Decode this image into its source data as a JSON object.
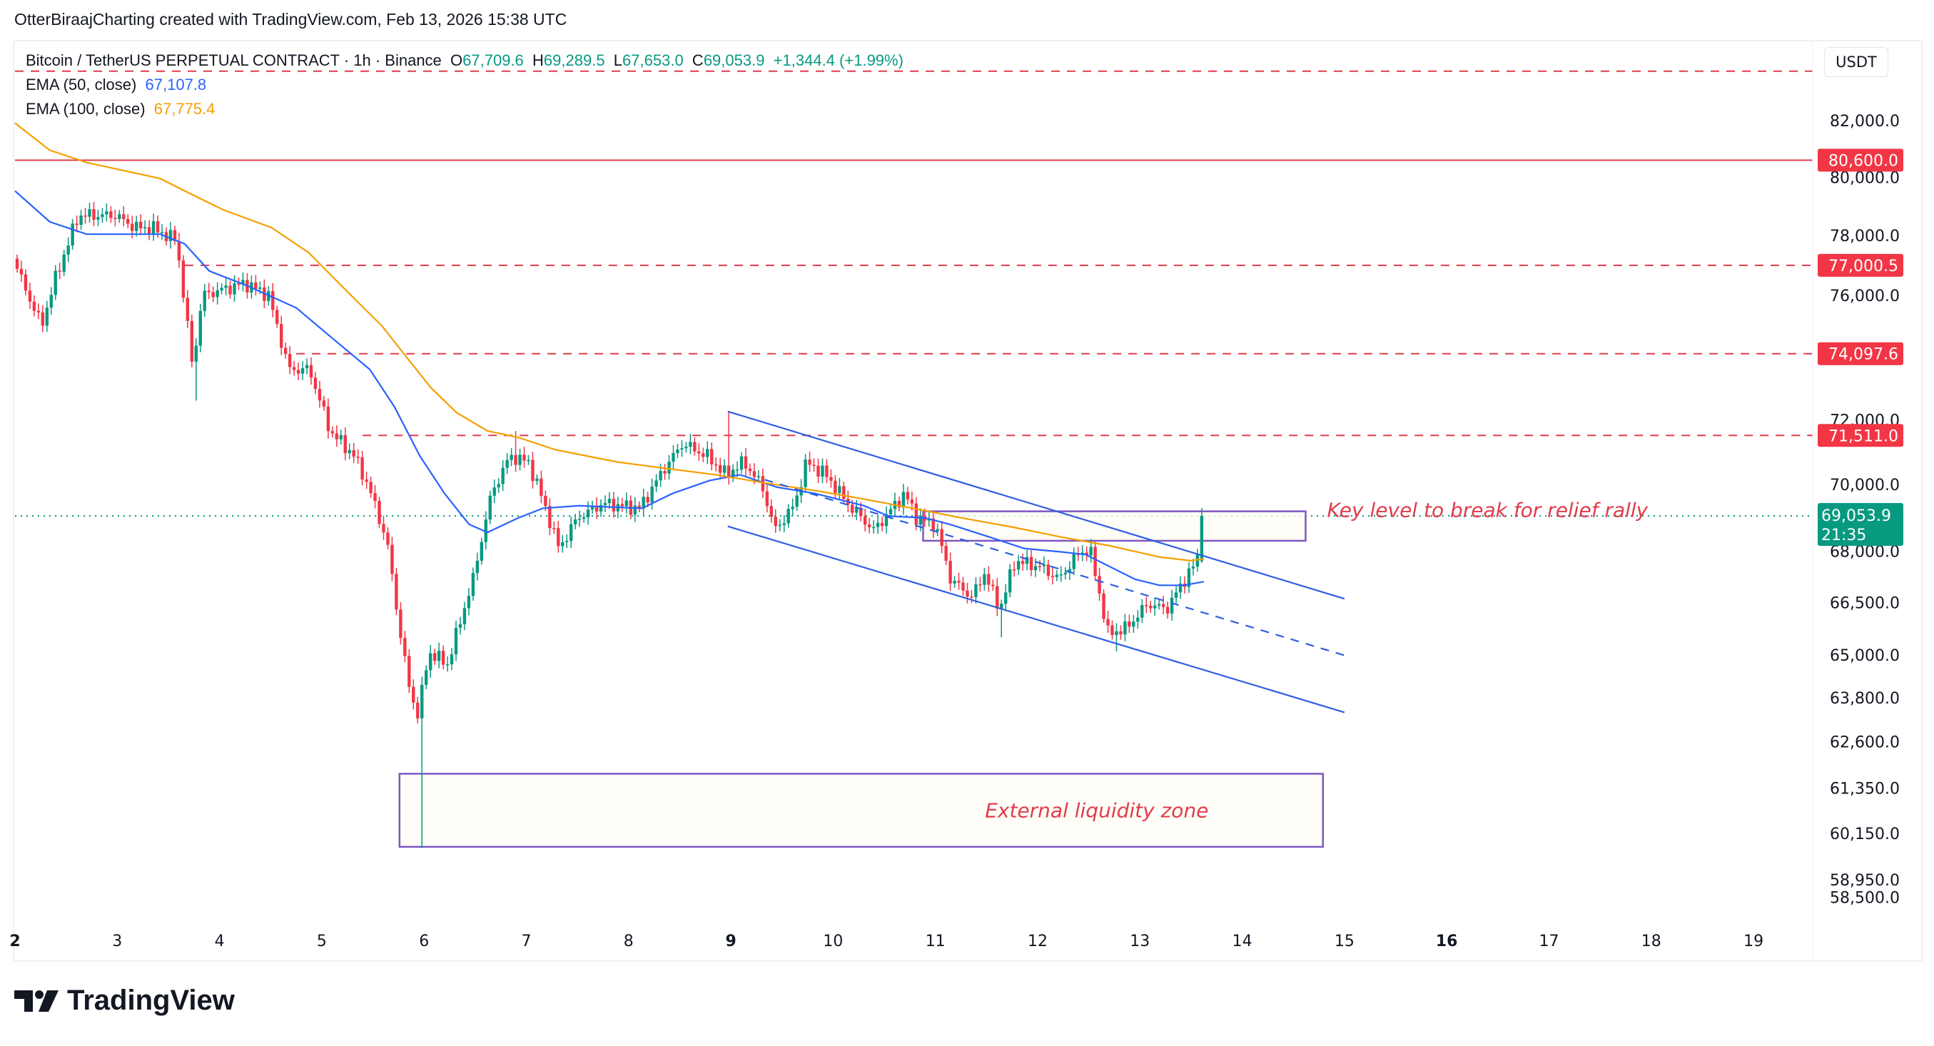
{
  "credit": "OtterBiraajCharting created with TradingView.com, Feb 13, 2026 15:38 UTC",
  "symbol": {
    "title": "Bitcoin / TetherUS PERPETUAL CONTRACT · 1h · Binance",
    "o_label": "O",
    "open": "67,709.6",
    "h_label": "H",
    "high": "69,289.5",
    "l_label": "L",
    "low": "67,653.0",
    "c_label": "C",
    "close": "69,053.9",
    "change": "+1,344.4 (+1.99%)"
  },
  "indicators": [
    {
      "label": "EMA (50, close)",
      "value": "67,107.8",
      "color": "#2962ff"
    },
    {
      "label": "EMA (100, close)",
      "value": "67,775.4",
      "color": "#f59f00"
    }
  ],
  "currency": "USDT",
  "logo_text": "TradingView",
  "colors": {
    "up": "#089981",
    "down": "#f23645",
    "level": "#e03c4b",
    "channel": "#2f5fe0",
    "box": "#7e57c2",
    "box_fill": "#fffdf5",
    "annotation": "#e03c4b"
  },
  "chart_data": {
    "type": "candlestick",
    "interval": "1h",
    "yscale": "log",
    "ylim": [
      58500,
      83800
    ],
    "xlim_days": [
      2,
      19.4
    ],
    "grid": false,
    "y_ticks": [
      "82,000.0",
      "80,000.0",
      "78,000.0",
      "76,000.0",
      "72,000.0",
      "70,000.0",
      "68,000.0",
      "66,500.0",
      "65,000.0",
      "63,800.0",
      "62,600.0",
      "61,350.0",
      "60,150.0",
      "58,950.0",
      "58,500.0"
    ],
    "x_ticks": [
      {
        "day": 2,
        "label": "2",
        "bold": true
      },
      {
        "day": 3,
        "label": "3"
      },
      {
        "day": 4,
        "label": "4"
      },
      {
        "day": 5,
        "label": "5"
      },
      {
        "day": 6,
        "label": "6"
      },
      {
        "day": 7,
        "label": "7"
      },
      {
        "day": 8,
        "label": "8"
      },
      {
        "day": 9,
        "label": "9",
        "bold": true
      },
      {
        "day": 10,
        "label": "10"
      },
      {
        "day": 11,
        "label": "11"
      },
      {
        "day": 12,
        "label": "12"
      },
      {
        "day": 13,
        "label": "13"
      },
      {
        "day": 14,
        "label": "14"
      },
      {
        "day": 15,
        "label": "15"
      },
      {
        "day": 16,
        "label": "16",
        "bold": true
      },
      {
        "day": 17,
        "label": "17"
      },
      {
        "day": 18,
        "label": "18"
      },
      {
        "day": 19,
        "label": "19"
      }
    ],
    "price_path": [
      [
        2.0,
        77220
      ],
      [
        2.15,
        76000
      ],
      [
        2.28,
        74990
      ],
      [
        2.4,
        76400
      ],
      [
        2.64,
        78690
      ],
      [
        3.0,
        78690
      ],
      [
        3.2,
        78270
      ],
      [
        3.36,
        78270
      ],
      [
        3.6,
        77840
      ],
      [
        3.76,
        73590
      ],
      [
        3.85,
        76000
      ],
      [
        4.27,
        76400
      ],
      [
        4.5,
        76000
      ],
      [
        4.7,
        73590
      ],
      [
        4.9,
        73590
      ],
      [
        5.1,
        71650
      ],
      [
        5.34,
        70870
      ],
      [
        5.48,
        69920
      ],
      [
        5.66,
        68260
      ],
      [
        5.78,
        65770
      ],
      [
        5.88,
        64020
      ],
      [
        5.96,
        63340
      ],
      [
        6.07,
        65080
      ],
      [
        6.25,
        64740
      ],
      [
        6.5,
        67180
      ],
      [
        6.68,
        69730
      ],
      [
        6.86,
        70870
      ],
      [
        7.04,
        70690
      ],
      [
        7.16,
        69730
      ],
      [
        7.34,
        68080
      ],
      [
        7.52,
        68990
      ],
      [
        7.77,
        69430
      ],
      [
        8.13,
        69280
      ],
      [
        8.37,
        70490
      ],
      [
        8.55,
        71260
      ],
      [
        8.79,
        70870
      ],
      [
        8.97,
        70300
      ],
      [
        9.15,
        70690
      ],
      [
        9.33,
        69920
      ],
      [
        9.45,
        68620
      ],
      [
        9.64,
        69360
      ],
      [
        9.76,
        70690
      ],
      [
        9.95,
        70300
      ],
      [
        10.18,
        69360
      ],
      [
        10.42,
        68620
      ],
      [
        10.72,
        69730
      ],
      [
        10.84,
        68990
      ],
      [
        11.02,
        68800
      ],
      [
        11.17,
        67180
      ],
      [
        11.38,
        66650
      ],
      [
        11.5,
        67360
      ],
      [
        11.65,
        66300
      ],
      [
        11.8,
        67720
      ],
      [
        12.05,
        67540
      ],
      [
        12.23,
        67180
      ],
      [
        12.41,
        67900
      ],
      [
        12.53,
        68080
      ],
      [
        12.62,
        66820
      ],
      [
        12.71,
        65600
      ],
      [
        12.89,
        65770
      ],
      [
        13.1,
        66470
      ],
      [
        13.28,
        66300
      ],
      [
        13.46,
        67180
      ],
      [
        13.58,
        67720
      ],
      [
        13.625,
        69053.9
      ]
    ],
    "notable_wicks": [
      [
        3.76,
        72600
      ],
      [
        5.96,
        59770
      ],
      [
        6.86,
        71650
      ],
      [
        8.97,
        72260
      ],
      [
        11.62,
        65500
      ],
      [
        12.75,
        65100
      ]
    ],
    "last_candle": {
      "open": 67709.6,
      "high": 69289.5,
      "low": 67653.0,
      "close": 69053.9
    },
    "series": [
      {
        "name": "EMA (50, close)",
        "color": "#2962ff",
        "points": [
          [
            2.0,
            79530
          ],
          [
            2.34,
            78470
          ],
          [
            2.7,
            78050
          ],
          [
            3.42,
            78050
          ],
          [
            3.66,
            77720
          ],
          [
            3.9,
            76810
          ],
          [
            4.27,
            76320
          ],
          [
            4.75,
            75590
          ],
          [
            5.11,
            74580
          ],
          [
            5.47,
            73590
          ],
          [
            5.71,
            72410
          ],
          [
            5.96,
            70870
          ],
          [
            6.2,
            69730
          ],
          [
            6.44,
            68800
          ],
          [
            6.62,
            68560
          ],
          [
            6.92,
            68990
          ],
          [
            7.16,
            69280
          ],
          [
            7.52,
            69360
          ],
          [
            8.13,
            69280
          ],
          [
            8.43,
            69730
          ],
          [
            8.79,
            70120
          ],
          [
            9.09,
            70300
          ],
          [
            9.45,
            69920
          ],
          [
            9.82,
            69730
          ],
          [
            10.3,
            69360
          ],
          [
            10.54,
            69050
          ],
          [
            10.9,
            68990
          ],
          [
            11.14,
            68800
          ],
          [
            11.5,
            68450
          ],
          [
            11.87,
            68080
          ],
          [
            12.23,
            67980
          ],
          [
            12.47,
            67900
          ],
          [
            12.71,
            67540
          ],
          [
            12.95,
            67180
          ],
          [
            13.19,
            67000
          ],
          [
            13.43,
            67000
          ],
          [
            13.625,
            67107.8
          ]
        ]
      },
      {
        "name": "EMA (100, close)",
        "color": "#f59f00",
        "points": [
          [
            2.0,
            81910
          ],
          [
            2.34,
            80950
          ],
          [
            2.7,
            80520
          ],
          [
            3.42,
            79960
          ],
          [
            3.66,
            79530
          ],
          [
            4.03,
            78890
          ],
          [
            4.51,
            78270
          ],
          [
            4.87,
            77430
          ],
          [
            5.23,
            76190
          ],
          [
            5.59,
            74990
          ],
          [
            5.83,
            73980
          ],
          [
            6.07,
            73000
          ],
          [
            6.32,
            72220
          ],
          [
            6.62,
            71650
          ],
          [
            6.92,
            71450
          ],
          [
            7.28,
            71070
          ],
          [
            7.89,
            70690
          ],
          [
            8.37,
            70490
          ],
          [
            8.85,
            70300
          ],
          [
            9.33,
            70050
          ],
          [
            9.82,
            69820
          ],
          [
            10.3,
            69560
          ],
          [
            10.78,
            69280
          ],
          [
            11.26,
            68990
          ],
          [
            11.75,
            68720
          ],
          [
            12.23,
            68420
          ],
          [
            12.71,
            68160
          ],
          [
            13.19,
            67830
          ],
          [
            13.5,
            67720
          ],
          [
            13.625,
            67775.4
          ]
        ]
      }
    ],
    "horizontal_levels": [
      {
        "price": 83780,
        "style": "dashed",
        "from_day": 2.0,
        "label": ""
      },
      {
        "price": 80600.0,
        "style": "solid",
        "from_day": 2.0,
        "label": "80,600.0"
      },
      {
        "price": 77000.5,
        "style": "dashed",
        "from_day": 3.66,
        "label": "77,000.5"
      },
      {
        "price": 74097.6,
        "style": "dashed",
        "from_day": 4.75,
        "label": "74,097.6"
      },
      {
        "price": 71511.0,
        "style": "dashed",
        "from_day": 5.4,
        "label": "71,511.0"
      }
    ],
    "current_price": {
      "price": 69053.9,
      "label": "69,053.9",
      "countdown": "21:35"
    },
    "channel": {
      "upper": [
        [
          8.97,
          72260
        ],
        [
          15.0,
          66610
        ]
      ],
      "middle": [
        [
          8.97,
          70490
        ],
        [
          15.0,
          64990
        ]
      ],
      "lower": [
        [
          8.97,
          68740
        ],
        [
          15.0,
          63400
        ]
      ]
    },
    "zones": [
      {
        "label": "Key level to break for relief rally",
        "from_day": 10.88,
        "to_day": 14.62,
        "top": 69190,
        "bottom": 68310,
        "label_position": "right"
      },
      {
        "label": "External liquidity zone",
        "from_day": 5.76,
        "to_day": 14.79,
        "top": 61730,
        "bottom": 59800,
        "label_position": "inside"
      }
    ]
  }
}
